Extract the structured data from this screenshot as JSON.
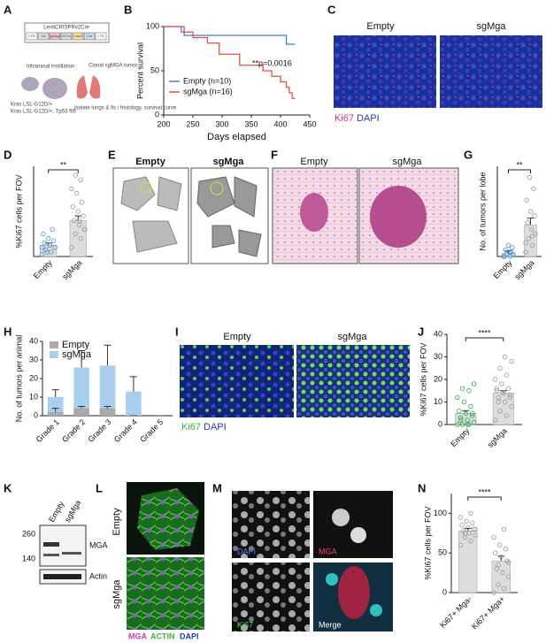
{
  "panel_labels": [
    "A",
    "B",
    "C",
    "D",
    "E",
    "F",
    "G",
    "H",
    "I",
    "J",
    "K",
    "L",
    "M",
    "N"
  ],
  "panel_a": {
    "vector": "LentiCRISPRv2Cre",
    "parts": [
      "LTR",
      "U6",
      "sgMga",
      "EF1a",
      "Cas9",
      "Cre",
      "LTR"
    ],
    "step1": "Intranasal instillation",
    "genotype1": "Kras LSL-G12D/+",
    "genotype2": "Kras LSL-G12D/+; Tp53 fl/fl",
    "tumor": "Clonal sgMGA tumor",
    "step2": "Isolate lungs & fix / histology, survival curve"
  },
  "panel_c": {
    "left": "Empty",
    "right": "sgMga",
    "stain1": "Ki67",
    "stain2": "DAPI"
  },
  "panel_e": {
    "left": "Empty",
    "right": "sgMga"
  },
  "panel_f": {
    "left": "Empty",
    "right": "sgMga"
  },
  "panel_i": {
    "left": "Empty",
    "right": "sgMga",
    "stain1": "Ki67",
    "stain2": "DAPI"
  },
  "panel_k": {
    "lanes": [
      "Empty",
      "sgMga"
    ],
    "markers": [
      "260",
      "140"
    ],
    "bands": [
      "MGA",
      "Actin"
    ]
  },
  "panel_l": {
    "rows": [
      "Empty",
      "sgMga"
    ],
    "stains": [
      "MGA",
      "ACTIN",
      "DAPI"
    ]
  },
  "panel_m": {
    "tiles": [
      "DAPI",
      "MGA",
      "Ki67",
      "Merge"
    ]
  },
  "chart_data": [
    {
      "type": "line",
      "step": true,
      "x_label": "Days elapsed",
      "y_label": "Percent survival",
      "annotation": "**p=0.0016",
      "xlim": [
        200,
        450
      ],
      "xticks": [
        200,
        250,
        300,
        350,
        400,
        450
      ],
      "ylim": [
        0,
        100
      ],
      "yticks": [
        0,
        50,
        100
      ],
      "series": [
        {
          "name": "Empty (n=10)",
          "color": "#3a7fd5",
          "x": [
            200,
            235,
            410,
            425
          ],
          "values": [
            100,
            90,
            80,
            80
          ]
        },
        {
          "name": "sgMga (n=16)",
          "color": "#e8503a",
          "x": [
            200,
            230,
            250,
            275,
            295,
            330,
            370,
            385,
            400,
            410,
            415,
            420,
            425
          ],
          "values": [
            100,
            93.75,
            87.5,
            81.25,
            68.75,
            56.25,
            50,
            43.75,
            37.5,
            31.25,
            25,
            18.75,
            18.75
          ]
        }
      ]
    },
    {
      "type": "bar",
      "y_label": "%Ki67 cells per FOV",
      "annotation": "**",
      "ylim": [
        0,
        20
      ],
      "categories": [
        "Empty",
        "sgMga"
      ],
      "values": [
        2.5,
        8
      ],
      "errors": [
        0.5,
        1
      ],
      "color": "#dddddd",
      "point_colors": [
        "#4a90d9",
        "#999999"
      ],
      "points": [
        [
          0.5,
          1,
          1.5,
          2,
          2.5,
          3,
          3.5,
          4,
          5,
          6,
          1,
          2
        ],
        [
          2,
          4,
          5,
          6,
          7,
          8,
          9,
          10,
          11,
          12,
          14,
          15,
          17,
          18,
          6,
          8
        ]
      ]
    },
    {
      "type": "bar",
      "y_label": "No. of tumors per lobe",
      "annotation": "**",
      "ylim": [
        0,
        40
      ],
      "categories": [
        "Empty",
        "sgMga"
      ],
      "values": [
        1.5,
        14
      ],
      "errors": [
        1,
        3
      ],
      "color": "#dddddd",
      "point_colors": [
        "#4a90d9",
        "#999999"
      ],
      "points": [
        [
          0,
          0,
          1,
          1,
          2,
          3,
          4,
          5,
          0,
          2
        ],
        [
          2,
          5,
          8,
          10,
          12,
          15,
          18,
          20,
          25,
          30,
          35,
          6,
          9
        ]
      ]
    },
    {
      "type": "bar",
      "y_label": "No. of tumors per animal",
      "legend": "upper left",
      "ylim": [
        0,
        40
      ],
      "yticks": [
        0,
        10,
        20,
        30,
        40
      ],
      "categories": [
        "Grade 1",
        "Grade 2",
        "Grade 3",
        "Grade 4",
        "Grade 5"
      ],
      "series": [
        {
          "name": "sgMga",
          "color": "#a9cff0",
          "values": [
            10,
            26,
            27,
            13,
            0
          ],
          "errors": [
            4,
            9,
            11,
            8,
            0
          ]
        },
        {
          "name": "Empty",
          "color": "#aaaaaa",
          "values": [
            2,
            4,
            4,
            0,
            0
          ],
          "errors": [
            2,
            1,
            1,
            0,
            0
          ]
        }
      ]
    },
    {
      "type": "bar",
      "y_label": "%Ki67 cells per FOV",
      "annotation": "****",
      "ylim": [
        0,
        40
      ],
      "yticks": [
        0,
        10,
        20,
        30,
        40
      ],
      "categories": [
        "Empty",
        "sgMga"
      ],
      "values": [
        5,
        14
      ],
      "errors": [
        1.2,
        1
      ],
      "color": "#dddddd",
      "point_colors": [
        "#2ea84a",
        "#999999"
      ],
      "points": [
        [
          0,
          0,
          0,
          1,
          2,
          3,
          4,
          5,
          6,
          8,
          10,
          12,
          15,
          16,
          18,
          0,
          2,
          5
        ],
        [
          2,
          4,
          6,
          8,
          10,
          12,
          13,
          14,
          15,
          16,
          18,
          20,
          22,
          25,
          28,
          30,
          10,
          12,
          14,
          16
        ]
      ]
    },
    {
      "type": "bar",
      "y_label": "%Ki67 cells per FOV",
      "annotation": "****",
      "ylim": [
        0,
        125
      ],
      "yticks": [
        0,
        50,
        100
      ],
      "categories": [
        "Ki67+ Mga-",
        "Ki67+ Mga+"
      ],
      "values": [
        78,
        40
      ],
      "errors": [
        3,
        6
      ],
      "color": "#dddddd",
      "point_colors": [
        "#999999",
        "#999999"
      ],
      "points": [
        [
          60,
          65,
          70,
          72,
          75,
          78,
          80,
          82,
          85,
          88,
          90,
          95,
          100,
          75,
          80
        ],
        [
          0,
          5,
          10,
          20,
          25,
          30,
          40,
          45,
          50,
          55,
          60,
          70,
          80,
          35,
          38
        ]
      ]
    }
  ]
}
